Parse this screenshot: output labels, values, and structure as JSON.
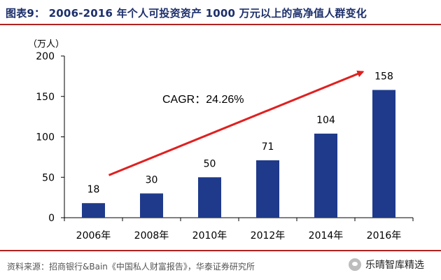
{
  "figure": {
    "title": "图表9：  2006-2016 年个人可投资资产 1000 万元以上的高净值人群变化",
    "source": "资料来源：招商银行&Bain《中国私人财富报告》，华泰证券研究所",
    "watermark": "乐晴智库精选"
  },
  "chart_data": {
    "type": "bar",
    "title": "",
    "unit_label": "（万人）",
    "xlabel": "",
    "ylabel": "",
    "categories": [
      "2006年",
      "2008年",
      "2010年",
      "2012年",
      "2014年",
      "2016年"
    ],
    "values": [
      18,
      30,
      50,
      71,
      104,
      158
    ],
    "ylim": [
      0,
      200
    ],
    "yticks": [
      0,
      50,
      100,
      150,
      200
    ],
    "grid": false,
    "bar_color": "#1f3a8a",
    "annotation": {
      "text": "CAGR：24.26%",
      "arrow_color": "#e02020"
    }
  }
}
